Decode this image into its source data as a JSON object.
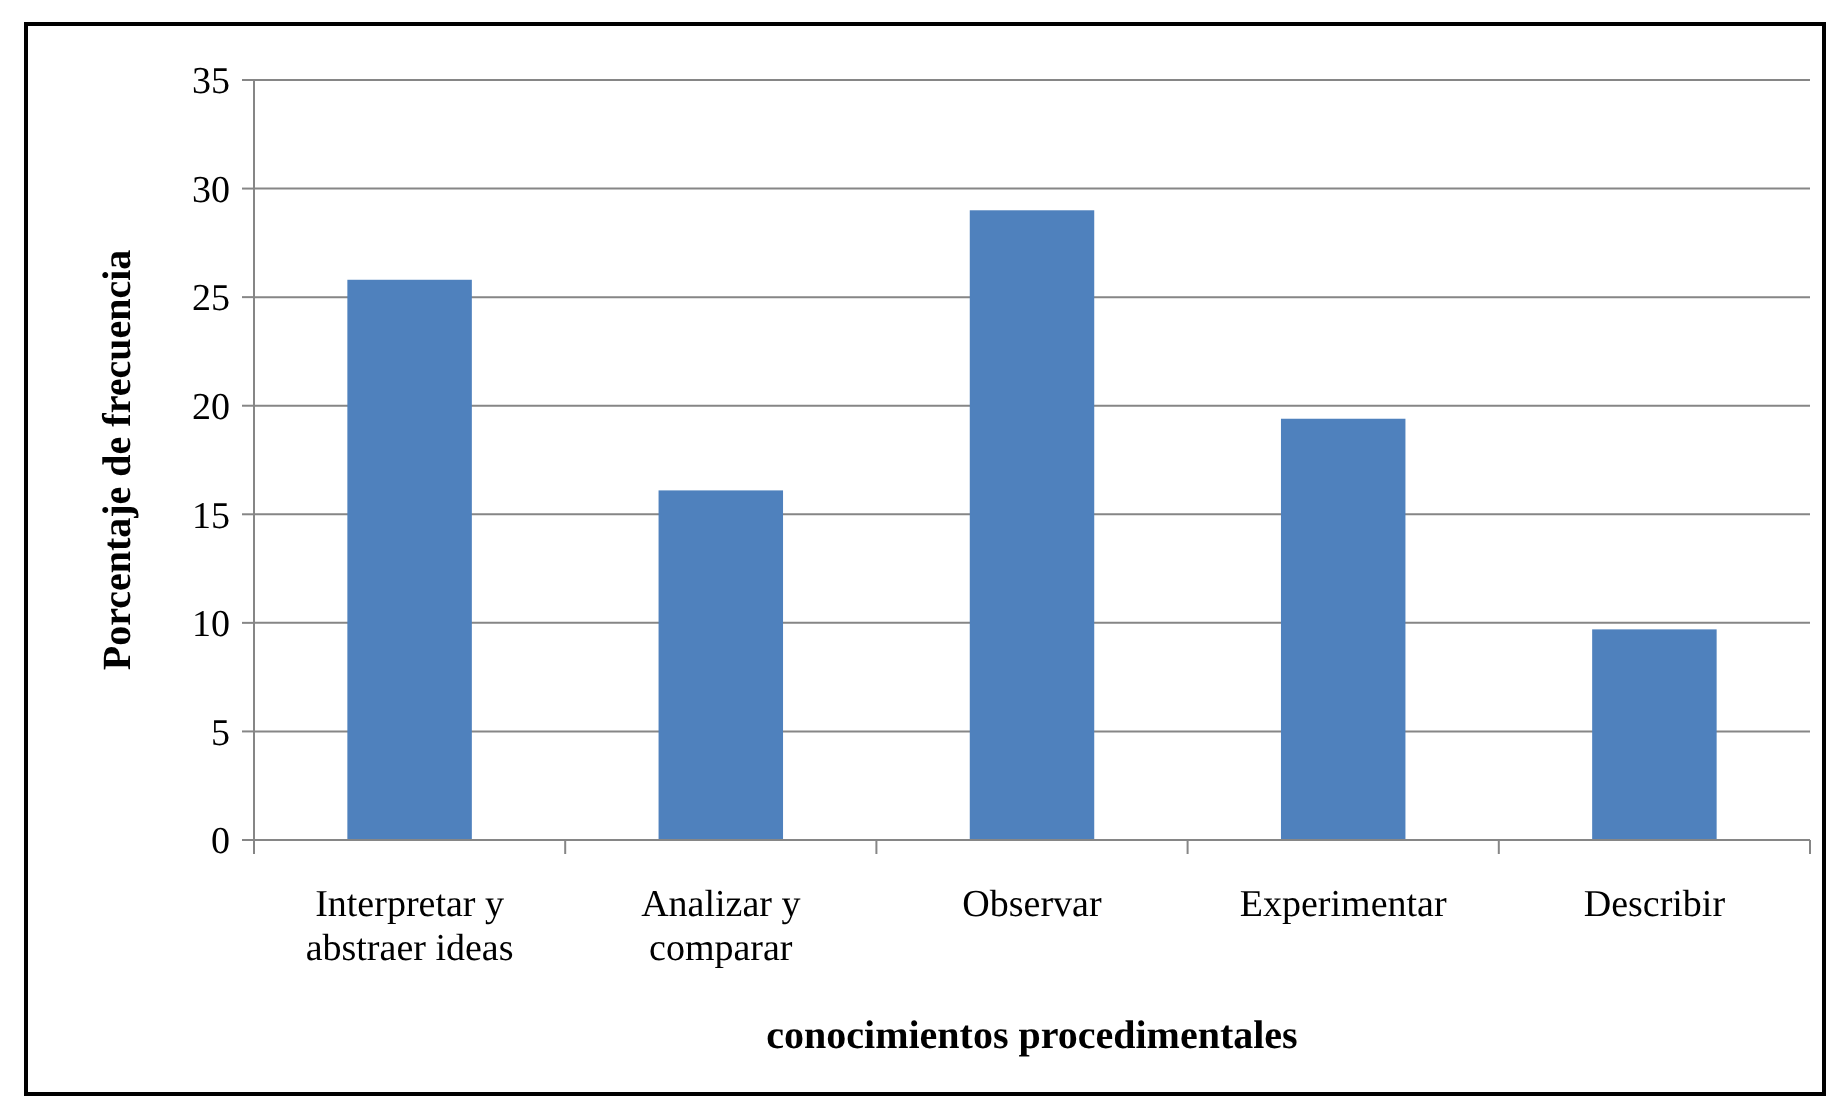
{
  "chart_data": {
    "type": "bar",
    "xlabel": "conocimientos procedimentales",
    "ylabel": "Porcentaje de frecuencia",
    "categories": [
      "Interpretar y abstraer ideas",
      "Analizar y comparar",
      "Observar",
      "Experimentar",
      "Describir"
    ],
    "values": [
      25.8,
      16.1,
      29.0,
      19.4,
      9.7
    ],
    "color": "#4f81bd",
    "ylim": [
      0,
      35
    ],
    "yticks": [
      0,
      5,
      10,
      15,
      20,
      25,
      30,
      35
    ],
    "grid": "y"
  }
}
